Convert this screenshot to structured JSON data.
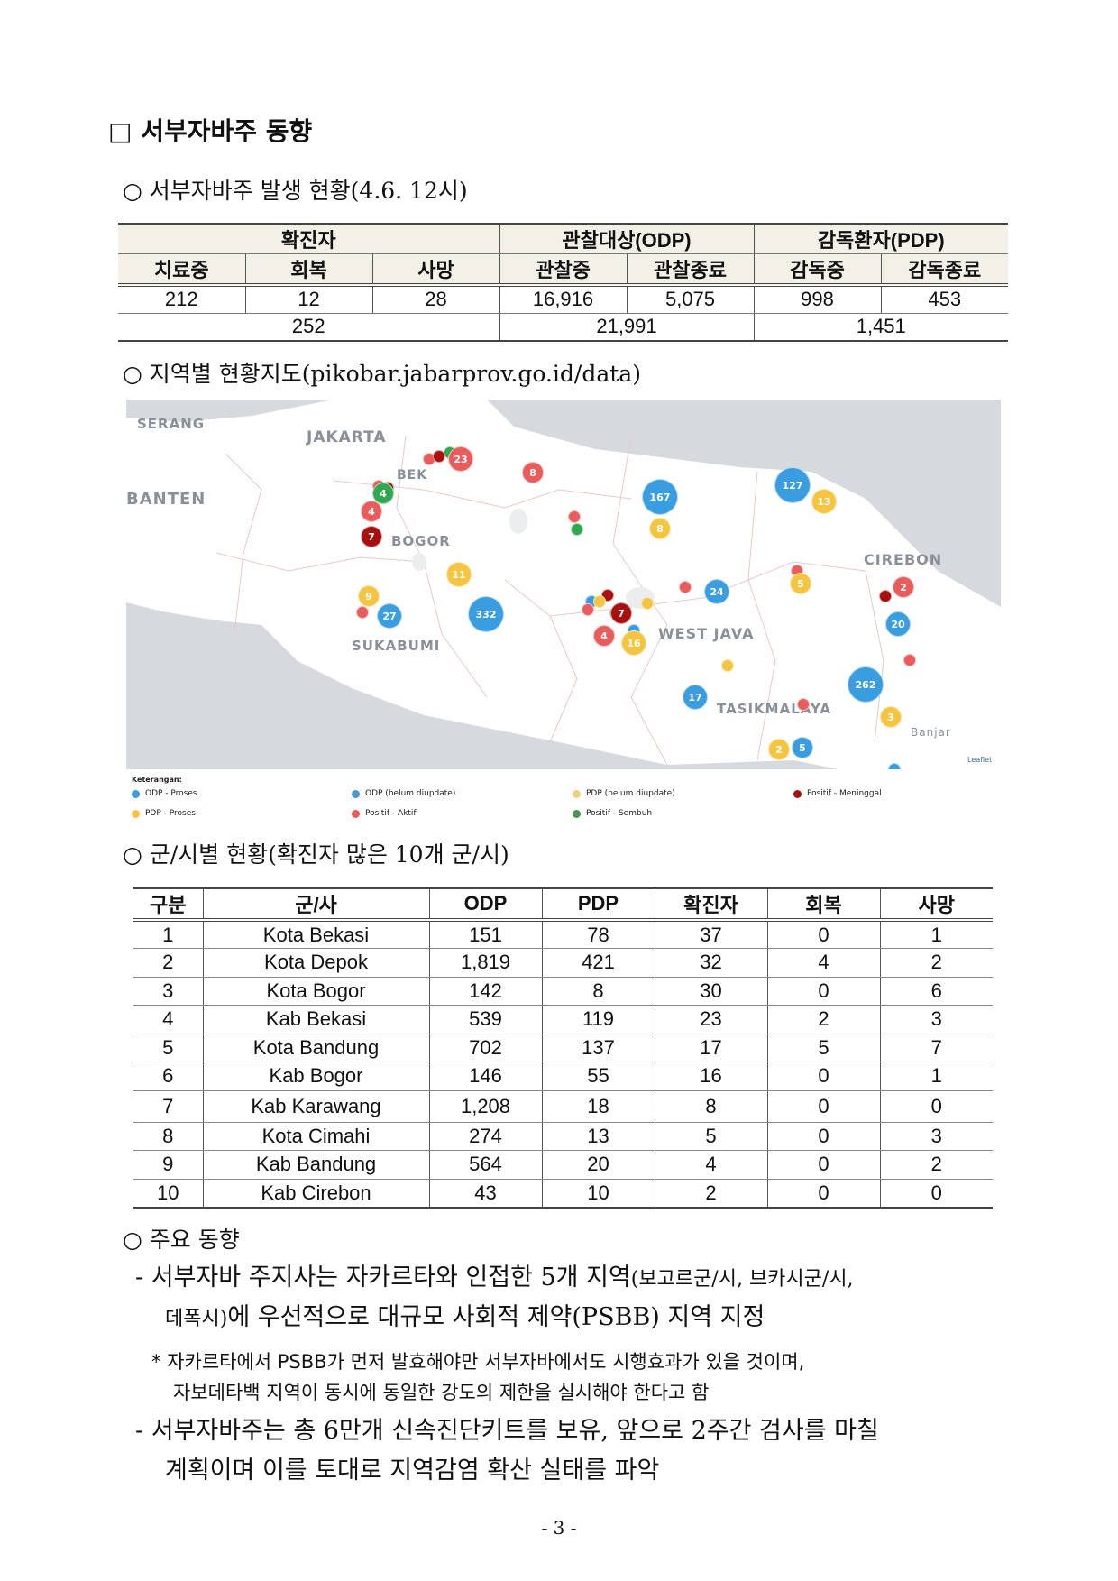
{
  "heading": "□ 서부자바주 동향",
  "section1": {
    "title": "○ 서부자바주 발생 현황(4.6. 12시)",
    "groups": [
      "확진자",
      "관찰대상(ODP)",
      "감독환자(PDP)"
    ],
    "columns": [
      "치료중",
      "회복",
      "사망",
      "관찰중",
      "관찰종료",
      "감독중",
      "감독종료"
    ],
    "values": [
      "212",
      "12",
      "28",
      "16,916",
      "5,075",
      "998",
      "453"
    ],
    "totals": [
      "252",
      "21,991",
      "1,451"
    ]
  },
  "section2": {
    "title": "○ 지역별 현황지도(pikobar.jabarprov.go.id/data)",
    "map": {
      "places": [
        "SERANG",
        "JAKARTA",
        "BEK",
        "BANTEN",
        "BOGOR",
        "CIREBON",
        "SUKABUMI",
        "WEST JAVA",
        "TASIKMALAYA",
        "Banjar"
      ],
      "attribution": "Leaflet",
      "colors": {
        "odp": "#3a9de0",
        "pdp": "#f5c542",
        "aktif": "#e85c5c",
        "meninggal": "#a80f0f",
        "sembuh": "#2fa84f"
      },
      "markers": [
        {
          "label": "",
          "type": "aktif"
        },
        {
          "label": "",
          "type": "sembuh"
        },
        {
          "label": "23",
          "type": "aktif"
        },
        {
          "label": "",
          "type": "meninggal"
        },
        {
          "label": "8",
          "type": "aktif"
        },
        {
          "label": "",
          "type": "aktif"
        },
        {
          "label": "",
          "type": "meninggal"
        },
        {
          "label": "4",
          "type": "sembuh"
        },
        {
          "label": "4",
          "type": "aktif"
        },
        {
          "label": "7",
          "type": "meninggal"
        },
        {
          "label": "167",
          "type": "odp"
        },
        {
          "label": "8",
          "type": "pdp"
        },
        {
          "label": "127",
          "type": "odp"
        },
        {
          "label": "13",
          "type": "pdp"
        },
        {
          "label": "",
          "type": "aktif"
        },
        {
          "label": "",
          "type": "sembuh"
        },
        {
          "label": "11",
          "type": "pdp"
        },
        {
          "label": "9",
          "type": "pdp"
        },
        {
          "label": "",
          "type": "aktif"
        },
        {
          "label": "27",
          "type": "odp"
        },
        {
          "label": "332",
          "type": "odp"
        },
        {
          "label": "",
          "type": "odp"
        },
        {
          "label": "",
          "type": "meninggal"
        },
        {
          "label": "",
          "type": "pdp"
        },
        {
          "label": "",
          "type": "aktif"
        },
        {
          "label": "",
          "type": "sembuh"
        },
        {
          "label": "7",
          "type": "meninggal"
        },
        {
          "label": "4",
          "type": "aktif"
        },
        {
          "label": "",
          "type": "odp"
        },
        {
          "label": "16",
          "type": "pdp"
        },
        {
          "label": "",
          "type": "pdp"
        },
        {
          "label": "",
          "type": "aktif"
        },
        {
          "label": "24",
          "type": "odp"
        },
        {
          "label": "",
          "type": "aktif"
        },
        {
          "label": "5",
          "type": "pdp"
        },
        {
          "label": "2",
          "type": "aktif"
        },
        {
          "label": "",
          "type": "meninggal"
        },
        {
          "label": "20",
          "type": "odp"
        },
        {
          "label": "",
          "type": "aktif"
        },
        {
          "label": "",
          "type": "pdp"
        },
        {
          "label": "17",
          "type": "odp"
        },
        {
          "label": "",
          "type": "aktif"
        },
        {
          "label": "262",
          "type": "odp"
        },
        {
          "label": "3",
          "type": "pdp"
        },
        {
          "label": "5",
          "type": "odp"
        },
        {
          "label": "2",
          "type": "pdp"
        },
        {
          "label": "",
          "type": "odp"
        }
      ]
    },
    "legend": {
      "title": "Keterangan:",
      "items": [
        {
          "label": "ODP - Proses",
          "color": "#3a9de0"
        },
        {
          "label": "ODP (belum diupdate)",
          "color": "#4a9ad0"
        },
        {
          "label": "PDP (belum diupdate)",
          "color": "#f0cf80"
        },
        {
          "label": "Positif - Meninggal",
          "color": "#a80f0f"
        },
        {
          "label": "PDP - Proses",
          "color": "#f5c542"
        },
        {
          "label": "Positif - Aktif",
          "color": "#e85c5c"
        },
        {
          "label": "Positif - Sembuh",
          "color": "#4e8f5a"
        }
      ]
    }
  },
  "section3": {
    "title": "○ 군/시별 현황(확진자 많은 10개 군/시)",
    "columns": [
      "구분",
      "군/사",
      "ODP",
      "PDP",
      "확진자",
      "회복",
      "사망"
    ],
    "rows": [
      [
        "1",
        "Kota Bekasi",
        "151",
        "78",
        "37",
        "0",
        "1"
      ],
      [
        "2",
        "Kota Depok",
        "1,819",
        "421",
        "32",
        "4",
        "2"
      ],
      [
        "3",
        "Kota Bogor",
        "142",
        "8",
        "30",
        "0",
        "6"
      ],
      [
        "4",
        "Kab Bekasi",
        "539",
        "119",
        "23",
        "2",
        "3"
      ],
      [
        "5",
        "Kota Bandung",
        "702",
        "137",
        "17",
        "5",
        "7"
      ],
      [
        "6",
        "Kab Bogor",
        "146",
        "55",
        "16",
        "0",
        "1"
      ],
      [
        "7",
        "Kab Karawang",
        "1,208",
        "18",
        "8",
        "0",
        "0"
      ],
      [
        "8",
        "Kota Cimahi",
        "274",
        "13",
        "5",
        "0",
        "3"
      ],
      [
        "9",
        "Kab Bandung",
        "564",
        "20",
        "4",
        "0",
        "2"
      ],
      [
        "10",
        "Kab Cirebon",
        "43",
        "10",
        "2",
        "0",
        "0"
      ]
    ]
  },
  "section4": {
    "title": "○ 주요 동향",
    "p1_line1": "- 서부자바 주지사는 자카르타와 인접한 5개 지역",
    "p1_line1_small": "(보고르군/시, 브카시군/시,",
    "p1_line2_small": "데폭시)",
    "p1_line2": "에 우선적으로 대규모 사회적 제약(PSBB) 지역 지정",
    "note_line1": "* 자카르타에서 PSBB가 먼저 발효해야만 서부자바에서도 시행효과가 있을 것이며,",
    "note_line2": "자보데타백 지역이 동시에 동일한 강도의 제한을 실시해야 한다고 함",
    "p2_line1": "- 서부자바주는 총 6만개 신속진단키트를 보유, 앞으로 2주간 검사를 마칠",
    "p2_line2": "계획이며 이를 토대로 지역감염 확산 실태를 파악"
  },
  "page_number": "- 3 -"
}
